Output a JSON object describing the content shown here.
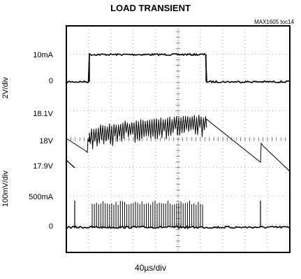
{
  "chart_data": {
    "type": "line",
    "title": "LOAD TRANSIENT",
    "part_number": "MAX1605 toc14",
    "xlabel": "40µs/div",
    "grid": true,
    "divisions": {
      "x": 10,
      "y": 8
    },
    "channels": [
      {
        "name": "2V/div",
        "zero_label": "0",
        "level_label": "10mA",
        "description": "load current step"
      },
      {
        "name": "100mV/div",
        "labels": [
          "18.1V",
          "18V",
          "17.9V"
        ],
        "description": "output voltage ripple"
      },
      {
        "name": "",
        "zero_label": "0",
        "level_label": "500mA",
        "description": "inductor current pulses"
      }
    ],
    "trace_color": "#000000"
  }
}
